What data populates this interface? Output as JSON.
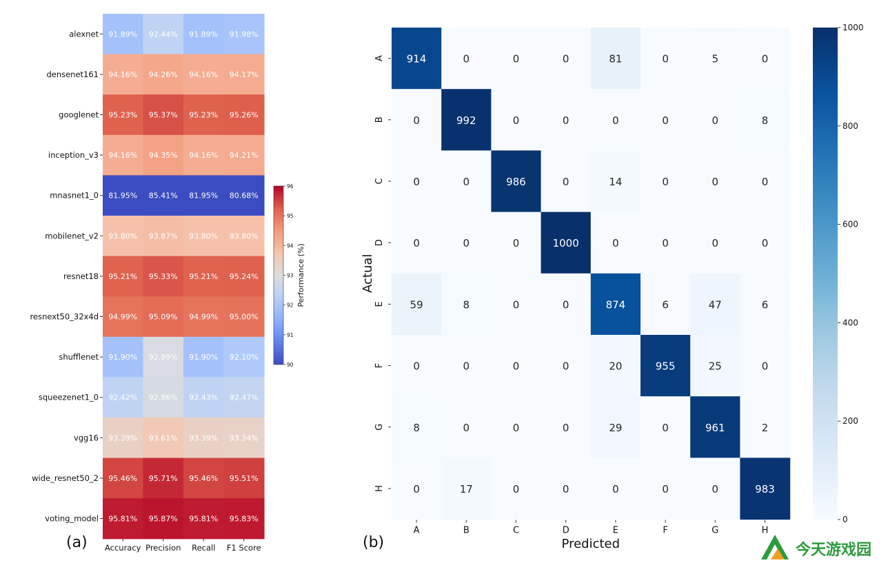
{
  "panels": {
    "a_label": "(a)",
    "b_label": "(b)"
  },
  "watermark": {
    "text": "今天游戏园",
    "color": "#2e9b3e"
  },
  "chart_data": [
    {
      "type": "heatmap",
      "panel": "(a)",
      "colormap": "coolwarm",
      "rows": [
        "alexnet",
        "densenet161",
        "googlenet",
        "inception_v3",
        "mnasnet1_0",
        "mobilenet_v2",
        "resnet18",
        "resnext50_32x4d",
        "shufflenet",
        "squeezenet1_0",
        "vgg16",
        "wide_resnet50_2",
        "voting_model"
      ],
      "columns": [
        "Accuracy",
        "Precision",
        "Recall",
        "F1 Score"
      ],
      "values": [
        [
          91.89,
          92.44,
          91.89,
          91.98
        ],
        [
          94.16,
          94.26,
          94.16,
          94.17
        ],
        [
          95.23,
          95.37,
          95.23,
          95.26
        ],
        [
          94.16,
          94.35,
          94.16,
          94.21
        ],
        [
          81.95,
          85.41,
          81.95,
          80.68
        ],
        [
          93.8,
          93.87,
          93.8,
          93.8
        ],
        [
          95.21,
          95.33,
          95.21,
          95.24
        ],
        [
          94.99,
          95.09,
          94.99,
          95.0
        ],
        [
          91.9,
          92.89,
          91.9,
          92.1
        ],
        [
          92.42,
          92.86,
          92.43,
          92.47
        ],
        [
          93.39,
          93.61,
          93.39,
          93.34
        ],
        [
          95.46,
          95.71,
          95.46,
          95.51
        ],
        [
          95.81,
          95.87,
          95.81,
          95.83
        ]
      ],
      "cell_labels": [
        [
          "91.89%",
          "92.44%",
          "91.89%",
          "91.98%"
        ],
        [
          "94.16%",
          "94.26%",
          "94.16%",
          "94.17%"
        ],
        [
          "95.23%",
          "95.37%",
          "95.23%",
          "95.26%"
        ],
        [
          "94.16%",
          "94.35%",
          "94.16%",
          "94.21%"
        ],
        [
          "81.95%",
          "85.41%",
          "81.95%",
          "80.68%"
        ],
        [
          "93.80%",
          "93.87%",
          "93.80%",
          "93.80%"
        ],
        [
          "95.21%",
          "95.33%",
          "95.21%",
          "95.24%"
        ],
        [
          "94.99%",
          "95.09%",
          "94.99%",
          "95.00%"
        ],
        [
          "91.90%",
          "92.89%",
          "91.90%",
          "92.10%"
        ],
        [
          "92.42%",
          "92.86%",
          "92.43%",
          "92.47%"
        ],
        [
          "93.39%",
          "93.61%",
          "93.39%",
          "93.34%"
        ],
        [
          "95.46%",
          "95.71%",
          "95.46%",
          "95.51%"
        ],
        [
          "95.81%",
          "95.87%",
          "95.81%",
          "95.83%"
        ]
      ],
      "colorbar": {
        "label": "Performance (%)",
        "range": [
          90,
          96
        ],
        "ticks": [
          "90",
          "91",
          "92",
          "93",
          "94",
          "95",
          "96"
        ]
      }
    },
    {
      "type": "heatmap",
      "panel": "(b)",
      "subtype": "confusion_matrix",
      "colormap": "Blues",
      "xlabel": "Predicted",
      "ylabel": "Actual",
      "x_categories": [
        "A",
        "B",
        "C",
        "D",
        "E",
        "F",
        "G",
        "H"
      ],
      "y_categories": [
        "A",
        "B",
        "C",
        "D",
        "E",
        "F",
        "G",
        "H"
      ],
      "values": [
        [
          914,
          0,
          0,
          0,
          81,
          0,
          5,
          0
        ],
        [
          0,
          992,
          0,
          0,
          0,
          0,
          0,
          8
        ],
        [
          0,
          0,
          986,
          0,
          14,
          0,
          0,
          0
        ],
        [
          0,
          0,
          0,
          1000,
          0,
          0,
          0,
          0
        ],
        [
          59,
          8,
          0,
          0,
          874,
          6,
          47,
          6
        ],
        [
          0,
          0,
          0,
          0,
          20,
          955,
          25,
          0
        ],
        [
          8,
          0,
          0,
          0,
          29,
          0,
          961,
          2
        ],
        [
          0,
          17,
          0,
          0,
          0,
          0,
          0,
          983
        ]
      ],
      "colorbar": {
        "range": [
          0,
          1000
        ],
        "ticks": [
          "0",
          "200",
          "400",
          "600",
          "800",
          "1000"
        ]
      }
    }
  ]
}
